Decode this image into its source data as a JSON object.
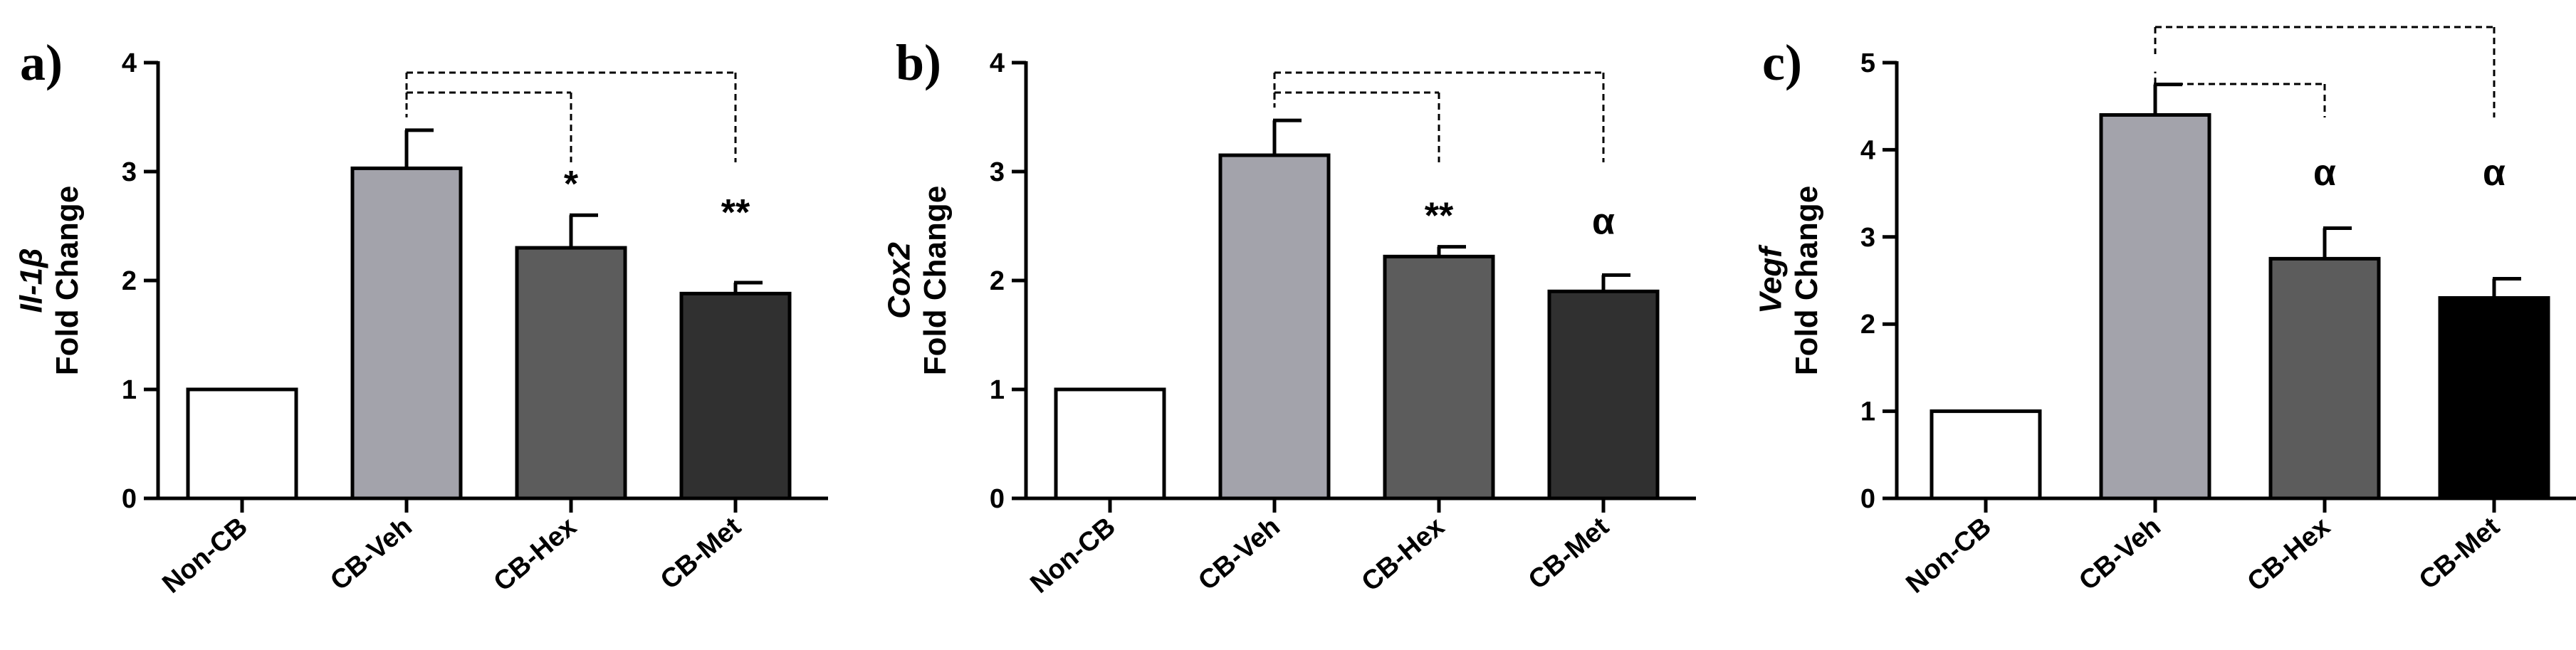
{
  "panels": [
    {
      "label": "a)",
      "chart_data": {
        "type": "bar",
        "title": "",
        "xlabel": "",
        "ylabel_gene": "Il-1β",
        "ylabel": "Fold Change",
        "ylim": [
          0,
          4
        ],
        "yticks": [
          0,
          1,
          2,
          3,
          4
        ],
        "categories": [
          "Non-CB",
          "CB-Veh",
          "CB-Hex",
          "CB-Met"
        ],
        "values": [
          1.0,
          3.03,
          2.3,
          1.88
        ],
        "errors": [
          0,
          0.35,
          0.3,
          0.1
        ],
        "colors": [
          "#ffffff",
          "#a3a3ab",
          "#5c5c5c",
          "#303030"
        ],
        "significance": [
          "",
          "",
          "*",
          "**"
        ],
        "brackets": [
          {
            "from": 1,
            "to": 2
          },
          {
            "from": 1,
            "to": 3
          }
        ]
      }
    },
    {
      "label": "b)",
      "chart_data": {
        "type": "bar",
        "title": "",
        "xlabel": "",
        "ylabel_gene": "Cox2",
        "ylabel": "Fold Change",
        "ylim": [
          0,
          4
        ],
        "yticks": [
          0,
          1,
          2,
          3,
          4
        ],
        "categories": [
          "Non-CB",
          "CB-Veh",
          "CB-Hex",
          "CB-Met"
        ],
        "values": [
          1.0,
          3.15,
          2.22,
          1.9
        ],
        "errors": [
          0,
          0.32,
          0.09,
          0.15
        ],
        "colors": [
          "#ffffff",
          "#a3a3ab",
          "#5c5c5c",
          "#303030"
        ],
        "significance": [
          "",
          "",
          "**",
          "α"
        ],
        "brackets": [
          {
            "from": 1,
            "to": 2
          },
          {
            "from": 1,
            "to": 3
          }
        ]
      }
    },
    {
      "label": "c)",
      "chart_data": {
        "type": "bar",
        "title": "",
        "xlabel": "",
        "ylabel_gene": "Vegf",
        "ylabel": "Fold Change",
        "ylim": [
          0,
          5
        ],
        "yticks": [
          0,
          1,
          2,
          3,
          4,
          5
        ],
        "categories": [
          "Non-CB",
          "CB-Veh",
          "CB-Hex",
          "CB-Met"
        ],
        "values": [
          1.0,
          4.4,
          2.75,
          2.3
        ],
        "errors": [
          0,
          0.35,
          0.35,
          0.22
        ],
        "colors": [
          "#ffffff",
          "#a3a3ab",
          "#5c5c5c",
          "#000000"
        ],
        "significance": [
          "",
          "",
          "α",
          "α"
        ],
        "brackets": [
          {
            "from": 1,
            "to": 2
          },
          {
            "from": 1,
            "to": 3
          }
        ]
      }
    }
  ]
}
